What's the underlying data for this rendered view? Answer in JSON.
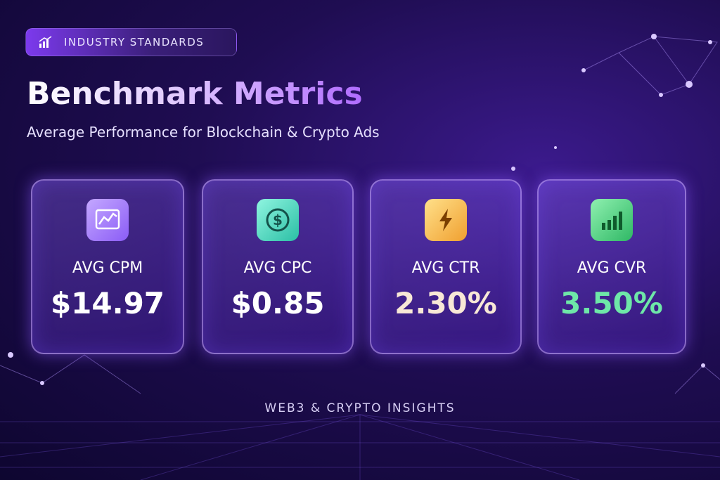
{
  "badge": "INDUSTRY STANDARDS",
  "title": "Benchmark Metrics",
  "subtitle": "Average Performance for Blockchain & Crypto Ads",
  "cards": [
    {
      "label": "AVG CPM",
      "value": "$14.97"
    },
    {
      "label": "AVG CPC",
      "value": "$0.85"
    },
    {
      "label": "AVG CTR",
      "value": "2.30%"
    },
    {
      "label": "AVG CVR",
      "value": "3.50%"
    }
  ],
  "footer": "WEB3 & CRYPTO INSIGHTS"
}
